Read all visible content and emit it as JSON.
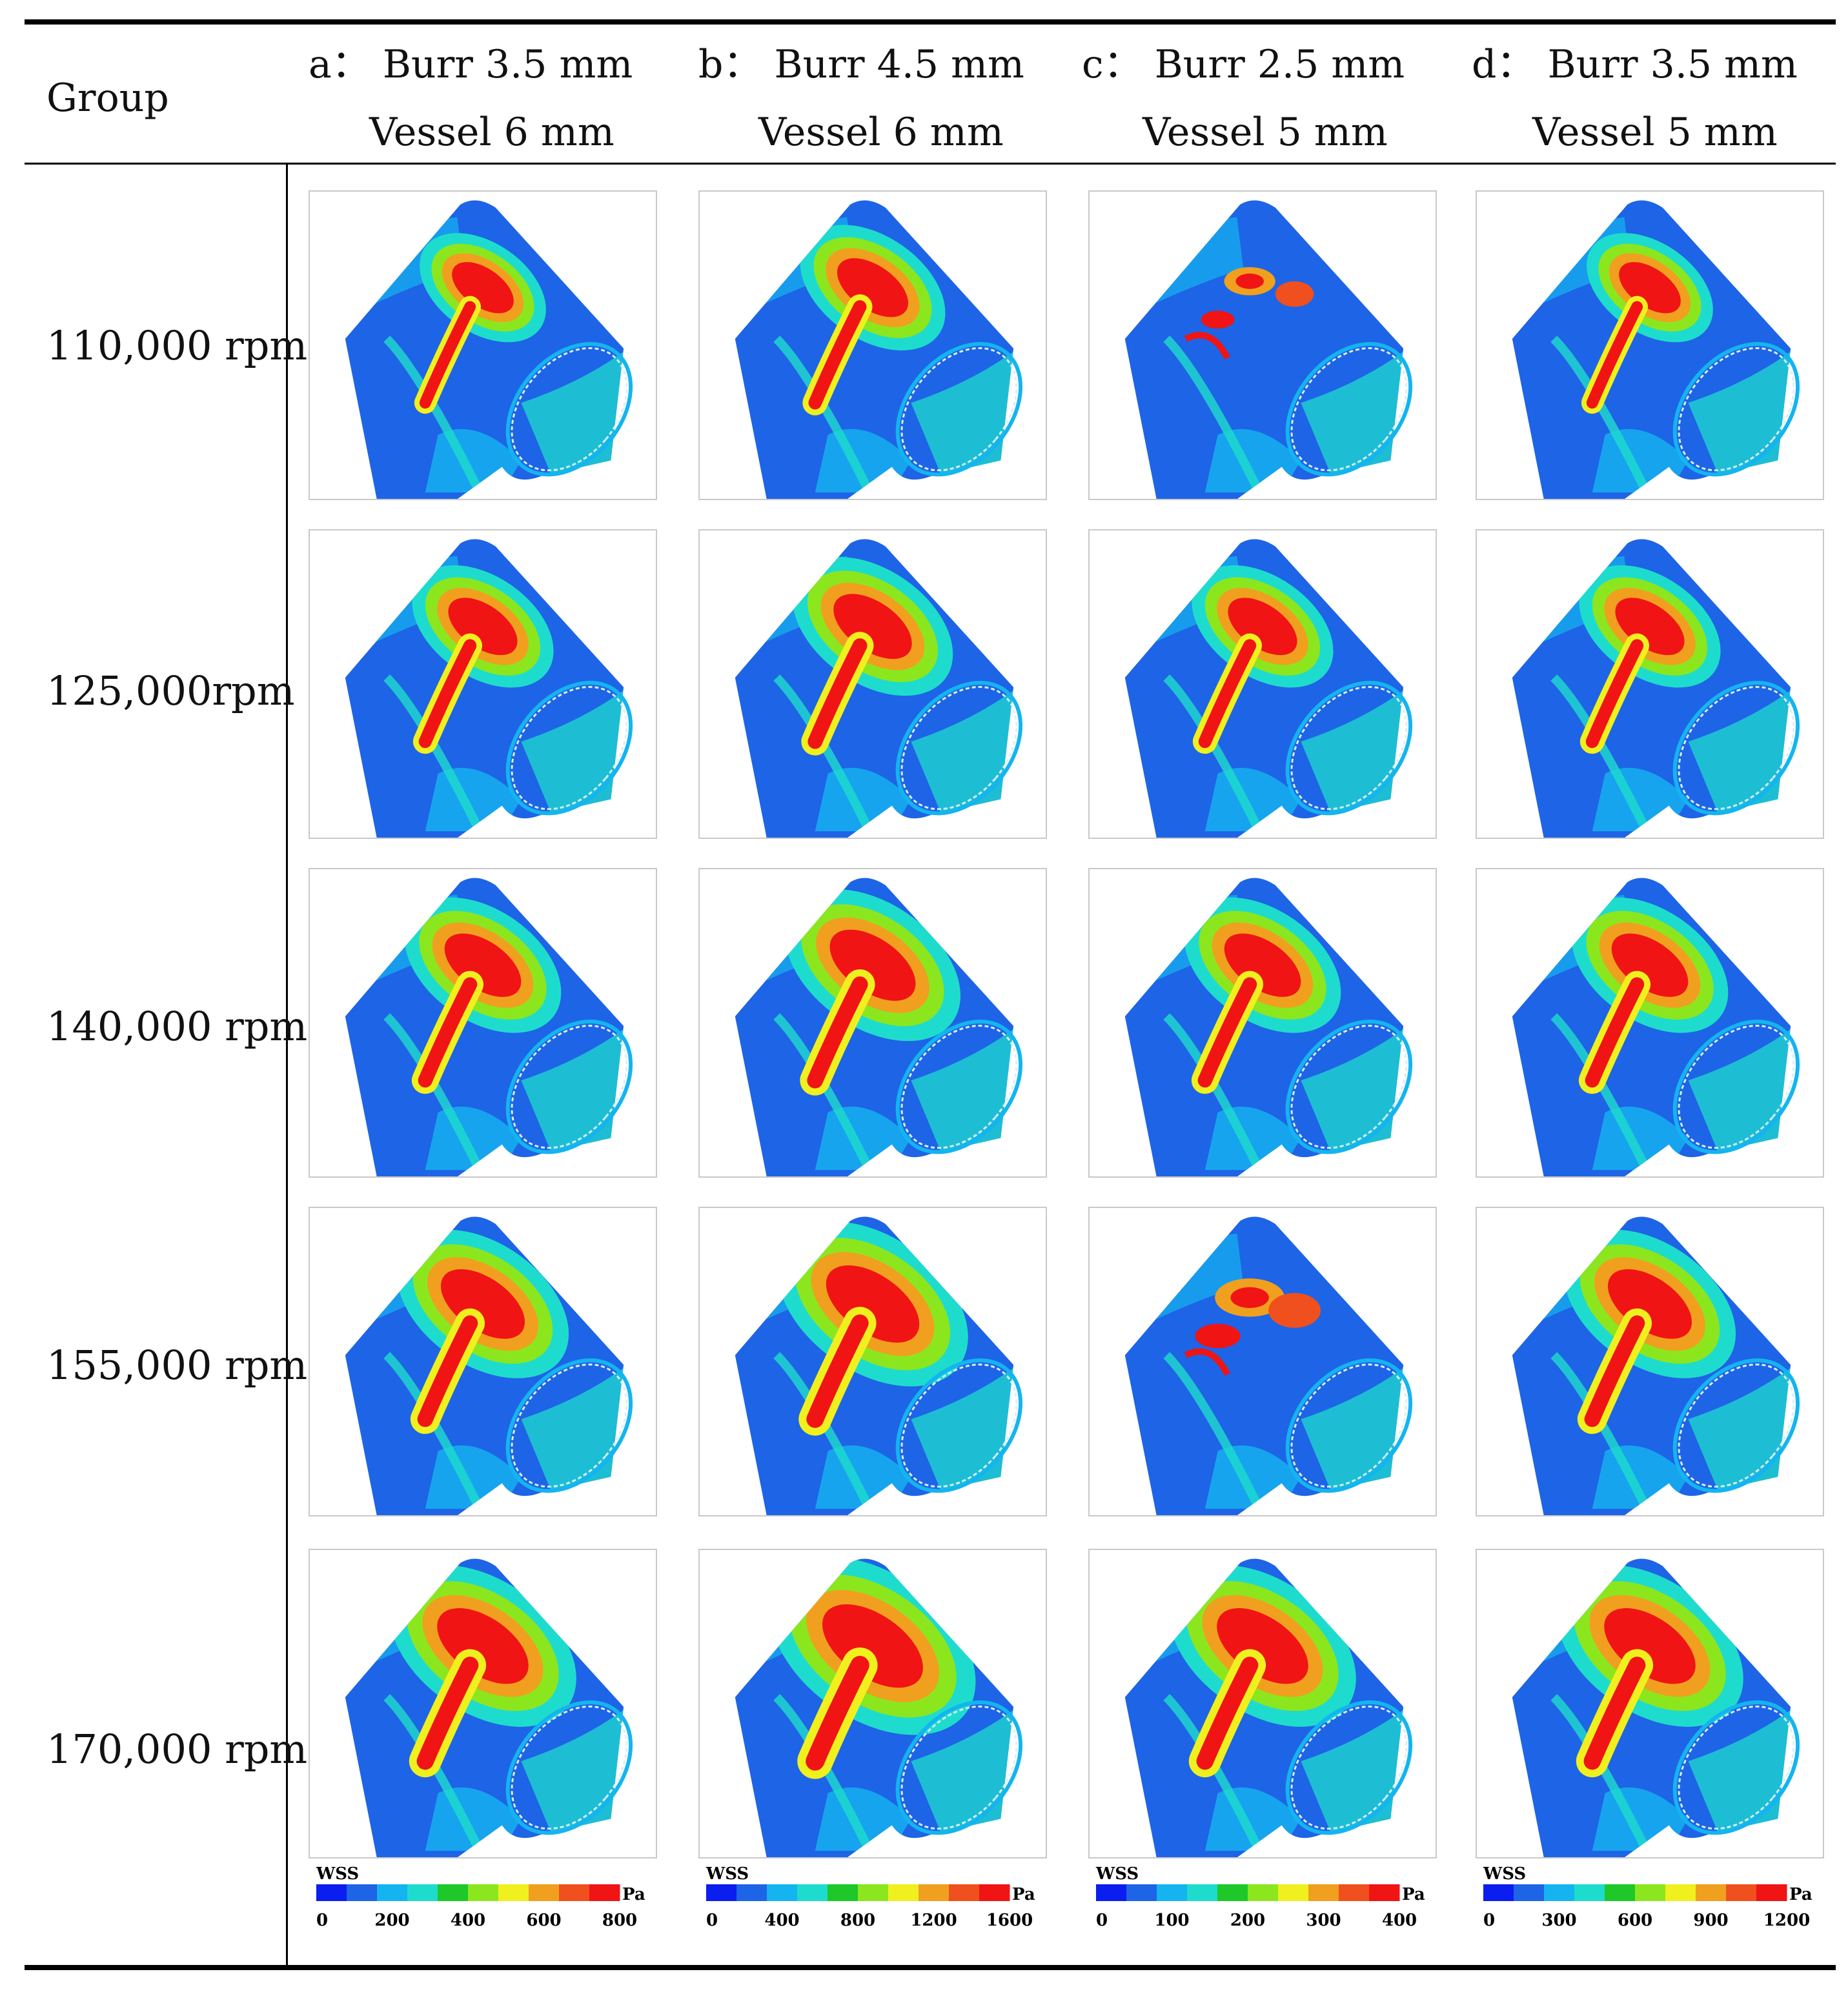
{
  "table": {
    "corner_label": "Group",
    "columns": [
      {
        "line1": "a： Burr 3.5 mm",
        "line2": "Vessel 6 mm"
      },
      {
        "line1": "b： Burr 4.5 mm",
        "line2": "Vessel 6 mm"
      },
      {
        "line1": "c： Burr 2.5 mm",
        "line2": "Vessel 5 mm"
      },
      {
        "line1": "d： Burr 3.5 mm",
        "line2": "Vessel 5 mm"
      }
    ],
    "rows": [
      "110,000 rpm",
      "125,000rpm",
      "140,000 rpm",
      "155,000 rpm",
      "170,000 rpm"
    ]
  },
  "legends": [
    {
      "title": "WSS",
      "unit": "Pa",
      "ticks": [
        "0",
        "200",
        "400",
        "600",
        "800"
      ]
    },
    {
      "title": "WSS",
      "unit": "Pa",
      "ticks": [
        "0",
        "400",
        "800",
        "1200",
        "1600"
      ]
    },
    {
      "title": "WSS",
      "unit": "Pa",
      "ticks": [
        "0",
        "100",
        "200",
        "300",
        "400"
      ]
    },
    {
      "title": "WSS",
      "unit": "Pa",
      "ticks": [
        "0",
        "300",
        "600",
        "900",
        "1200"
      ]
    }
  ],
  "colormap": [
    "#0a1ef0",
    "#1e64e6",
    "#14b4f0",
    "#1edccd",
    "#1ec828",
    "#8ce61e",
    "#f0f01e",
    "#f0a01e",
    "#f0501e",
    "#f01414"
  ]
}
